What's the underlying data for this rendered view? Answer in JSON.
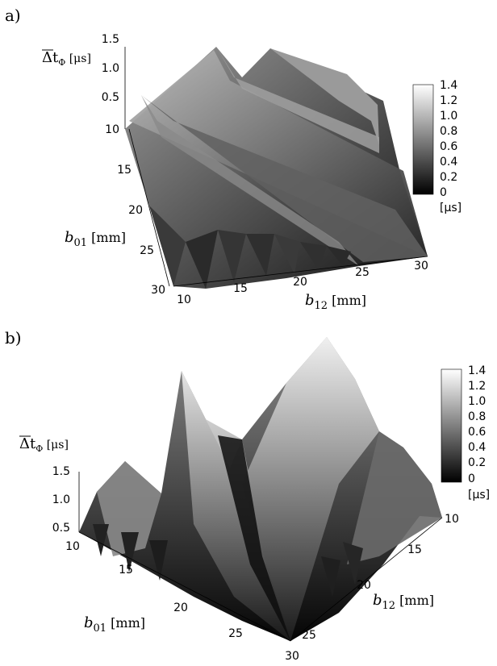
{
  "chart_data": [
    {
      "panel": "a)",
      "type": "surface-3d",
      "xlabel": "b12 [mm]",
      "xlabel_main": "b",
      "xlabel_sub": "12",
      "xlabel_unit": " [mm]",
      "ylabel": "b01 [mm]",
      "ylabel_main": "b",
      "ylabel_sub": "01",
      "ylabel_unit": " [mm]",
      "zlabel": "Δt_Φ [μs]",
      "zlabel_main": "Δt",
      "zlabel_sub": "Φ",
      "zlabel_unit": " [μs]",
      "x_ticks": [
        "10",
        "15",
        "20",
        "25",
        "30"
      ],
      "y_ticks": [
        "10",
        "15",
        "20",
        "25",
        "30"
      ],
      "z_ticks": [
        "0.5",
        "1.0",
        "1.5"
      ],
      "xlim": [
        10,
        30
      ],
      "ylim": [
        10,
        30
      ],
      "zlim": [
        0,
        1.5
      ],
      "colorbar": {
        "ticks": [
          "1.4",
          "1.2",
          "1.0",
          "0.8",
          "0.6",
          "0.4",
          "0.2",
          "0"
        ],
        "unit": "[μs]",
        "range": [
          0,
          1.4
        ],
        "colormap": [
          "#000000",
          "#ffffff"
        ]
      }
    },
    {
      "panel": "b)",
      "type": "surface-3d",
      "xlabel": "b01 [mm]",
      "xlabel_main": "b",
      "xlabel_sub": "01",
      "xlabel_unit": " [mm]",
      "ylabel": "b12 [mm]",
      "ylabel_main": "b",
      "ylabel_sub": "12",
      "ylabel_unit": " [mm]",
      "zlabel": "Δt_Φ [μs]",
      "zlabel_main": "Δt",
      "zlabel_sub": "Φ",
      "zlabel_unit": " [μs]",
      "x_ticks": [
        "10",
        "15",
        "20",
        "25",
        "30"
      ],
      "y_ticks": [
        "10",
        "15",
        "20",
        "25"
      ],
      "z_ticks": [
        "0.5",
        "1.0",
        "1.5"
      ],
      "xlim": [
        10,
        30
      ],
      "ylim": [
        10,
        30
      ],
      "zlim": [
        0,
        1.5
      ],
      "colorbar": {
        "ticks": [
          "1.4",
          "1.2",
          "1.0",
          "0.8",
          "0.6",
          "0.4",
          "0.2",
          "0"
        ],
        "unit": "[μs]",
        "range": [
          0,
          1.4
        ],
        "colormap": [
          "#000000",
          "#ffffff"
        ]
      }
    }
  ]
}
